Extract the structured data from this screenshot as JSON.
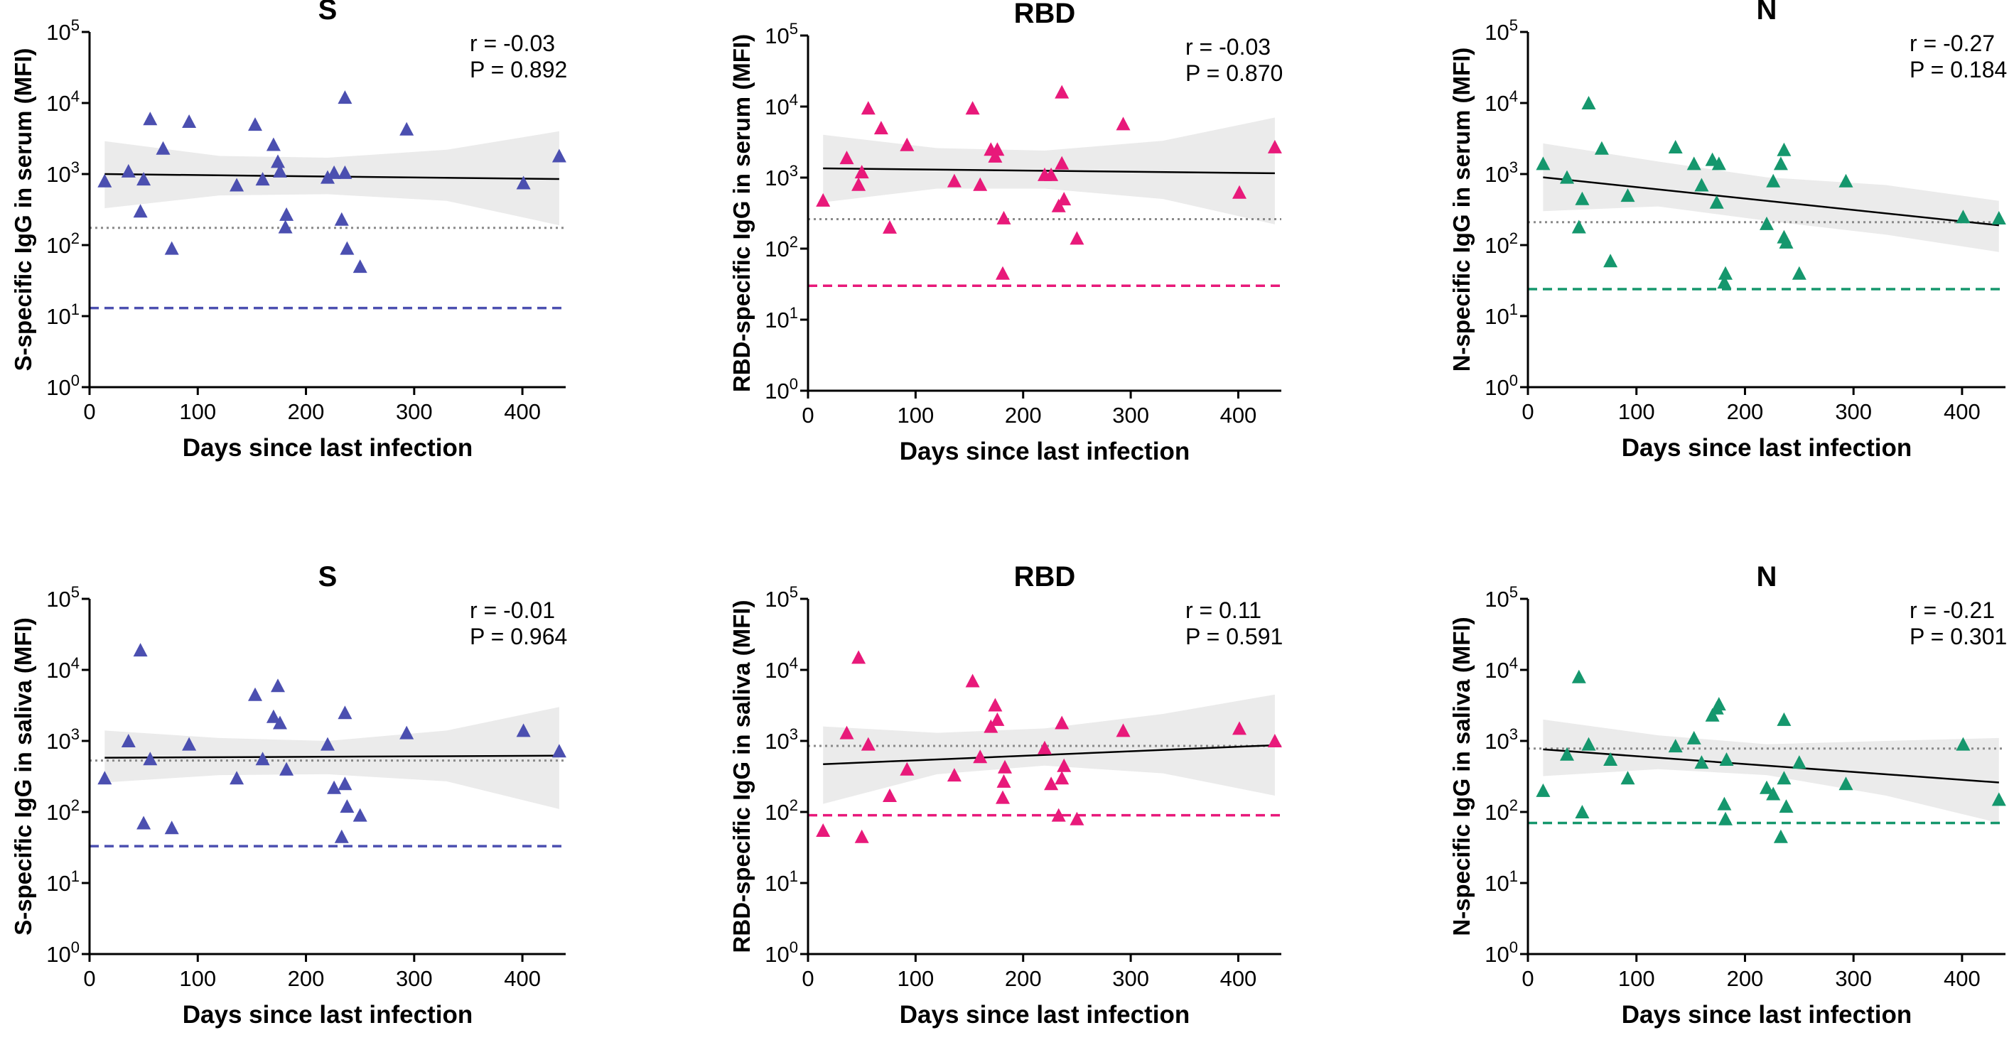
{
  "chart_data": [
    {
      "type": "scatter",
      "title": "S",
      "xlabel": "Days since last infection",
      "ylabel": "S-specific IgG in serum (MFI)",
      "xlim": [
        0,
        440
      ],
      "ylim": [
        1,
        100000
      ],
      "yscale": "log10",
      "xticks": [
        "0",
        "100",
        "200",
        "300",
        "400"
      ],
      "yticks": [
        "10^0",
        "10^1",
        "10^2",
        "10^3",
        "10^4",
        "10^5"
      ],
      "r_text": "r = -0.03",
      "p_text": "P = 0.892",
      "color": "#4b4fb0",
      "cutoff": 13,
      "dotted_level": 175,
      "fit": {
        "x": [
          14,
          434
        ],
        "y": [
          1000,
          850
        ]
      },
      "band": {
        "x": [
          14,
          120,
          220,
          330,
          434
        ],
        "upper": [
          2900,
          1800,
          1700,
          2200,
          4000
        ],
        "lower": [
          330,
          500,
          520,
          420,
          190
        ]
      },
      "points": [
        [
          14,
          800
        ],
        [
          36,
          1100
        ],
        [
          47,
          300
        ],
        [
          50,
          850
        ],
        [
          56,
          6000
        ],
        [
          68,
          2300
        ],
        [
          76,
          90
        ],
        [
          92,
          5500
        ],
        [
          136,
          700
        ],
        [
          153,
          5000
        ],
        [
          160,
          850
        ],
        [
          170,
          2600
        ],
        [
          174,
          1500
        ],
        [
          176,
          1100
        ],
        [
          181,
          180
        ],
        [
          182,
          270
        ],
        [
          220,
          900
        ],
        [
          226,
          1050
        ],
        [
          233,
          230
        ],
        [
          236,
          12000
        ],
        [
          236,
          1050
        ],
        [
          238,
          90
        ],
        [
          250,
          50
        ],
        [
          293,
          4300
        ],
        [
          401,
          750
        ],
        [
          434,
          1800
        ]
      ]
    },
    {
      "type": "scatter",
      "title": "RBD",
      "xlabel": "Days since last infection",
      "ylabel": "RBD-specific IgG in serum (MFI)",
      "xlim": [
        0,
        440
      ],
      "ylim": [
        1,
        100000
      ],
      "yscale": "log10",
      "xticks": [
        "0",
        "100",
        "200",
        "300",
        "400"
      ],
      "yticks": [
        "10^0",
        "10^1",
        "10^2",
        "10^3",
        "10^4",
        "10^5"
      ],
      "r_text": "r = -0.03",
      "p_text": "P = 0.870",
      "color": "#e8197a",
      "cutoff": 30,
      "dotted_level": 260,
      "fit": {
        "x": [
          14,
          434
        ],
        "y": [
          1350,
          1150
        ]
      },
      "band": {
        "x": [
          14,
          120,
          220,
          330,
          434
        ],
        "upper": [
          4000,
          2600,
          2400,
          3300,
          7000
        ],
        "lower": [
          450,
          700,
          700,
          500,
          220
        ]
      },
      "points": [
        [
          14,
          480
        ],
        [
          36,
          1900
        ],
        [
          47,
          800
        ],
        [
          50,
          1200
        ],
        [
          56,
          9500
        ],
        [
          68,
          5000
        ],
        [
          76,
          200
        ],
        [
          92,
          2900
        ],
        [
          136,
          900
        ],
        [
          153,
          9500
        ],
        [
          160,
          800
        ],
        [
          170,
          2500
        ],
        [
          174,
          2000
        ],
        [
          176,
          2500
        ],
        [
          181,
          45
        ],
        [
          182,
          270
        ],
        [
          220,
          1100
        ],
        [
          226,
          1100
        ],
        [
          233,
          400
        ],
        [
          236,
          16000
        ],
        [
          236,
          1600
        ],
        [
          238,
          500
        ],
        [
          250,
          140
        ],
        [
          293,
          5700
        ],
        [
          401,
          620
        ],
        [
          434,
          2700
        ]
      ]
    },
    {
      "type": "scatter",
      "title": "N",
      "xlabel": "Days since last infection",
      "ylabel": "N-specific IgG in serum (MFI)",
      "xlim": [
        0,
        440
      ],
      "ylim": [
        1,
        100000
      ],
      "yscale": "log10",
      "xticks": [
        "0",
        "100",
        "200",
        "300",
        "400"
      ],
      "yticks": [
        "10^0",
        "10^1",
        "10^2",
        "10^3",
        "10^4",
        "10^5"
      ],
      "r_text": "r = -0.27",
      "p_text": "P = 0.184",
      "color": "#15976d",
      "cutoff": 24,
      "dotted_level": 210,
      "fit": {
        "x": [
          14,
          434
        ],
        "y": [
          900,
          190
        ]
      },
      "band": {
        "x": [
          14,
          120,
          220,
          330,
          434
        ],
        "upper": [
          2700,
          1500,
          900,
          700,
          420
        ],
        "lower": [
          300,
          350,
          220,
          140,
          80
        ]
      },
      "points": [
        [
          14,
          1400
        ],
        [
          36,
          900
        ],
        [
          47,
          180
        ],
        [
          50,
          450
        ],
        [
          56,
          10000
        ],
        [
          68,
          2300
        ],
        [
          76,
          60
        ],
        [
          92,
          500
        ],
        [
          136,
          2400
        ],
        [
          153,
          1400
        ],
        [
          160,
          700
        ],
        [
          170,
          1600
        ],
        [
          174,
          400
        ],
        [
          176,
          1400
        ],
        [
          181,
          30
        ],
        [
          182,
          40
        ],
        [
          220,
          200
        ],
        [
          226,
          800
        ],
        [
          233,
          1400
        ],
        [
          236,
          130
        ],
        [
          236,
          2200
        ],
        [
          238,
          110
        ],
        [
          250,
          40
        ],
        [
          293,
          800
        ],
        [
          401,
          250
        ],
        [
          434,
          240
        ]
      ]
    },
    {
      "type": "scatter",
      "title": "S",
      "xlabel": "Days since last infection",
      "ylabel": "S-specific IgG in saliva (MFI)",
      "xlim": [
        0,
        440
      ],
      "ylim": [
        1,
        100000
      ],
      "yscale": "log10",
      "xticks": [
        "0",
        "100",
        "200",
        "300",
        "400"
      ],
      "yticks": [
        "10^0",
        "10^1",
        "10^2",
        "10^3",
        "10^4",
        "10^5"
      ],
      "r_text": "r = -0.01",
      "p_text": "P = 0.964",
      "color": "#4b4fb0",
      "cutoff": 33,
      "dotted_level": 530,
      "fit": {
        "x": [
          14,
          434
        ],
        "y": [
          580,
          620
        ]
      },
      "band": {
        "x": [
          14,
          120,
          220,
          330,
          434
        ],
        "upper": [
          1400,
          1100,
          1000,
          1400,
          3000
        ],
        "lower": [
          260,
          330,
          340,
          270,
          110
        ]
      },
      "points": [
        [
          14,
          300
        ],
        [
          36,
          1000
        ],
        [
          47,
          19000
        ],
        [
          50,
          70
        ],
        [
          56,
          560
        ],
        [
          76,
          60
        ],
        [
          92,
          900
        ],
        [
          136,
          300
        ],
        [
          153,
          4500
        ],
        [
          160,
          560
        ],
        [
          170,
          2200
        ],
        [
          174,
          6000
        ],
        [
          176,
          1800
        ],
        [
          182,
          400
        ],
        [
          220,
          900
        ],
        [
          226,
          220
        ],
        [
          233,
          45
        ],
        [
          236,
          2500
        ],
        [
          236,
          250
        ],
        [
          238,
          120
        ],
        [
          250,
          90
        ],
        [
          293,
          1300
        ],
        [
          401,
          1400
        ],
        [
          434,
          720
        ]
      ]
    },
    {
      "type": "scatter",
      "title": "RBD",
      "xlabel": "Days since last infection",
      "ylabel": "RBD-specific IgG in saliva (MFI)",
      "xlim": [
        0,
        440
      ],
      "ylim": [
        1,
        100000
      ],
      "yscale": "log10",
      "xticks": [
        "0",
        "100",
        "200",
        "300",
        "400"
      ],
      "yticks": [
        "10^0",
        "10^1",
        "10^2",
        "10^3",
        "10^4",
        "10^5"
      ],
      "r_text": "r = 0.11",
      "p_text": "P = 0.591",
      "color": "#e8197a",
      "cutoff": 90,
      "dotted_level": 850,
      "fit": {
        "x": [
          14,
          434
        ],
        "y": [
          470,
          870
        ]
      },
      "band": {
        "x": [
          14,
          120,
          220,
          330,
          434
        ],
        "upper": [
          1600,
          1300,
          1500,
          2400,
          4500
        ],
        "lower": [
          130,
          340,
          450,
          350,
          170
        ]
      },
      "points": [
        [
          14,
          55
        ],
        [
          36,
          1300
        ],
        [
          47,
          15000
        ],
        [
          50,
          45
        ],
        [
          56,
          900
        ],
        [
          76,
          170
        ],
        [
          92,
          400
        ],
        [
          136,
          330
        ],
        [
          153,
          7000
        ],
        [
          160,
          600
        ],
        [
          170,
          1600
        ],
        [
          174,
          3200
        ],
        [
          176,
          2000
        ],
        [
          181,
          160
        ],
        [
          182,
          270
        ],
        [
          183,
          430
        ],
        [
          220,
          800
        ],
        [
          226,
          250
        ],
        [
          233,
          90
        ],
        [
          236,
          1800
        ],
        [
          236,
          300
        ],
        [
          238,
          450
        ],
        [
          250,
          80
        ],
        [
          293,
          1400
        ],
        [
          401,
          1500
        ],
        [
          434,
          1000
        ]
      ]
    },
    {
      "type": "scatter",
      "title": "N",
      "xlabel": "Days since last infection",
      "ylabel": "N-specific IgG in saliva (MFI)",
      "xlim": [
        0,
        440
      ],
      "ylim": [
        1,
        100000
      ],
      "yscale": "log10",
      "xticks": [
        "0",
        "100",
        "200",
        "300",
        "400"
      ],
      "yticks": [
        "10^0",
        "10^1",
        "10^2",
        "10^3",
        "10^4",
        "10^5"
      ],
      "r_text": "r = -0.21",
      "p_text": "P = 0.301",
      "color": "#15976d",
      "cutoff": 70,
      "dotted_level": 780,
      "fit": {
        "x": [
          14,
          434
        ],
        "y": [
          760,
          260
        ]
      },
      "band": {
        "x": [
          14,
          120,
          220,
          330,
          434
        ],
        "upper": [
          2000,
          1200,
          900,
          1000,
          1100
        ],
        "lower": [
          320,
          400,
          330,
          170,
          70
        ]
      },
      "points": [
        [
          14,
          200
        ],
        [
          36,
          650
        ],
        [
          47,
          8000
        ],
        [
          50,
          100
        ],
        [
          56,
          900
        ],
        [
          76,
          550
        ],
        [
          92,
          300
        ],
        [
          136,
          850
        ],
        [
          153,
          1100
        ],
        [
          160,
          500
        ],
        [
          170,
          2300
        ],
        [
          174,
          2900
        ],
        [
          176,
          3300
        ],
        [
          181,
          130
        ],
        [
          182,
          80
        ],
        [
          183,
          550
        ],
        [
          220,
          220
        ],
        [
          226,
          180
        ],
        [
          233,
          45
        ],
        [
          236,
          2000
        ],
        [
          236,
          300
        ],
        [
          238,
          120
        ],
        [
          250,
          500
        ],
        [
          293,
          250
        ],
        [
          401,
          900
        ],
        [
          434,
          150
        ]
      ]
    }
  ]
}
